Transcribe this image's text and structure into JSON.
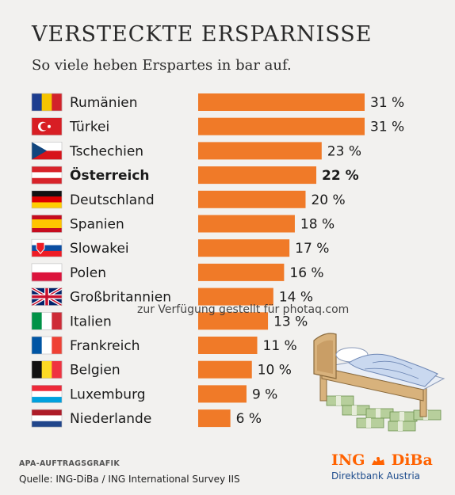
{
  "title": "VERSTECKTE ERSPARNISSE",
  "subtitle": "So viele heben Erspartes in bar auf.",
  "chart_data": {
    "type": "bar",
    "orientation": "horizontal",
    "categories": [
      "Rumänien",
      "Türkei",
      "Tschechien",
      "Österreich",
      "Deutschland",
      "Spanien",
      "Slowakei",
      "Polen",
      "Großbritannien",
      "Italien",
      "Frankreich",
      "Belgien",
      "Luxemburg",
      "Niederlande"
    ],
    "values": [
      31,
      31,
      23,
      22,
      20,
      18,
      17,
      16,
      14,
      13,
      11,
      10,
      9,
      6
    ],
    "value_labels": [
      "31 %",
      "31 %",
      "23 %",
      "22 %",
      "20 %",
      "18 %",
      "17 %",
      "16 %",
      "14 %",
      "13 %",
      "11 %",
      "10 %",
      "9 %",
      "6 %"
    ],
    "highlight": "Österreich",
    "xlim": [
      0,
      31
    ],
    "bar_color": "#f07a28",
    "grid": false
  },
  "flags": [
    {
      "country": "Rumänien",
      "icon": "romania-flag-icon"
    },
    {
      "country": "Türkei",
      "icon": "turkey-flag-icon"
    },
    {
      "country": "Tschechien",
      "icon": "czech-flag-icon"
    },
    {
      "country": "Österreich",
      "icon": "austria-flag-icon"
    },
    {
      "country": "Deutschland",
      "icon": "germany-flag-icon"
    },
    {
      "country": "Spanien",
      "icon": "spain-flag-icon"
    },
    {
      "country": "Slowakei",
      "icon": "slovakia-flag-icon"
    },
    {
      "country": "Polen",
      "icon": "poland-flag-icon"
    },
    {
      "country": "Großbritannien",
      "icon": "uk-flag-icon"
    },
    {
      "country": "Italien",
      "icon": "italy-flag-icon"
    },
    {
      "country": "Frankreich",
      "icon": "france-flag-icon"
    },
    {
      "country": "Belgien",
      "icon": "belgium-flag-icon"
    },
    {
      "country": "Luxemburg",
      "icon": "luxembourg-flag-icon"
    },
    {
      "country": "Niederlande",
      "icon": "netherlands-flag-icon"
    }
  ],
  "illustration": "bed-with-money-icon",
  "footer": {
    "tag": "APA-AUFTRAGSGRAFIK",
    "source": "Quelle: ING-DiBa / ING International Survey IIS"
  },
  "logo": {
    "line1a": "ING",
    "line1b": "DiBa",
    "line2": "Direktbank Austria",
    "icon": "ing-lion-icon"
  },
  "watermark": "zur Verfügung gestellt für photaq.com"
}
